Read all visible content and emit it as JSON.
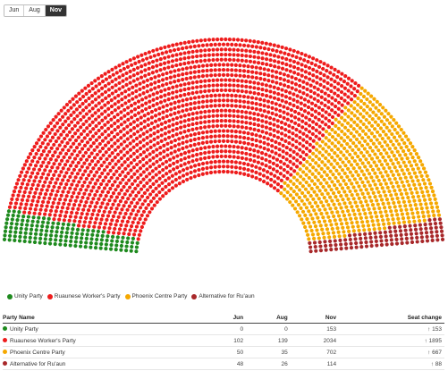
{
  "tabs": [
    {
      "label": "Jun",
      "active": false
    },
    {
      "label": "Aug",
      "active": false
    },
    {
      "label": "Nov",
      "active": true
    }
  ],
  "chart_data": {
    "type": "parliament",
    "total_seats": 3003,
    "series": [
      {
        "name": "Unity Party",
        "color": "#1e8a1e",
        "values": {
          "Jun": 0,
          "Aug": 0,
          "Nov": 153
        },
        "change": "153"
      },
      {
        "name": "Ruaunese Worker's Party",
        "color": "#ee1c1c",
        "values": {
          "Jun": 102,
          "Aug": 139,
          "Nov": 2034
        },
        "change": "1895"
      },
      {
        "name": "Phoenix Centre Party",
        "color": "#f5a800",
        "values": {
          "Jun": 50,
          "Aug": 35,
          "Nov": 702
        },
        "change": "667"
      },
      {
        "name": "Alternative for Ru'aun",
        "color": "#a8282a",
        "values": {
          "Jun": 48,
          "Aug": 26,
          "Nov": 114
        },
        "change": "88"
      }
    ]
  },
  "table": {
    "headers": [
      "Party Name",
      "Jun",
      "Aug",
      "Nov",
      "Seat change"
    ],
    "rows": [
      {
        "party": "Unity Party",
        "color": "#1e8a1e",
        "jun": "0",
        "aug": "0",
        "nov": "153",
        "change": "↑ 153"
      },
      {
        "party": "Ruaunese Worker's Party",
        "color": "#ee1c1c",
        "jun": "102",
        "aug": "139",
        "nov": "2034",
        "change": "↑ 1895"
      },
      {
        "party": "Phoenix Centre Party",
        "color": "#f5a800",
        "jun": "50",
        "aug": "35",
        "nov": "702",
        "change": "↑ 667"
      },
      {
        "party": "Alternative for Ru'aun",
        "color": "#a8282a",
        "jun": "48",
        "aug": "26",
        "nov": "114",
        "change": "↑ 88"
      }
    ]
  }
}
